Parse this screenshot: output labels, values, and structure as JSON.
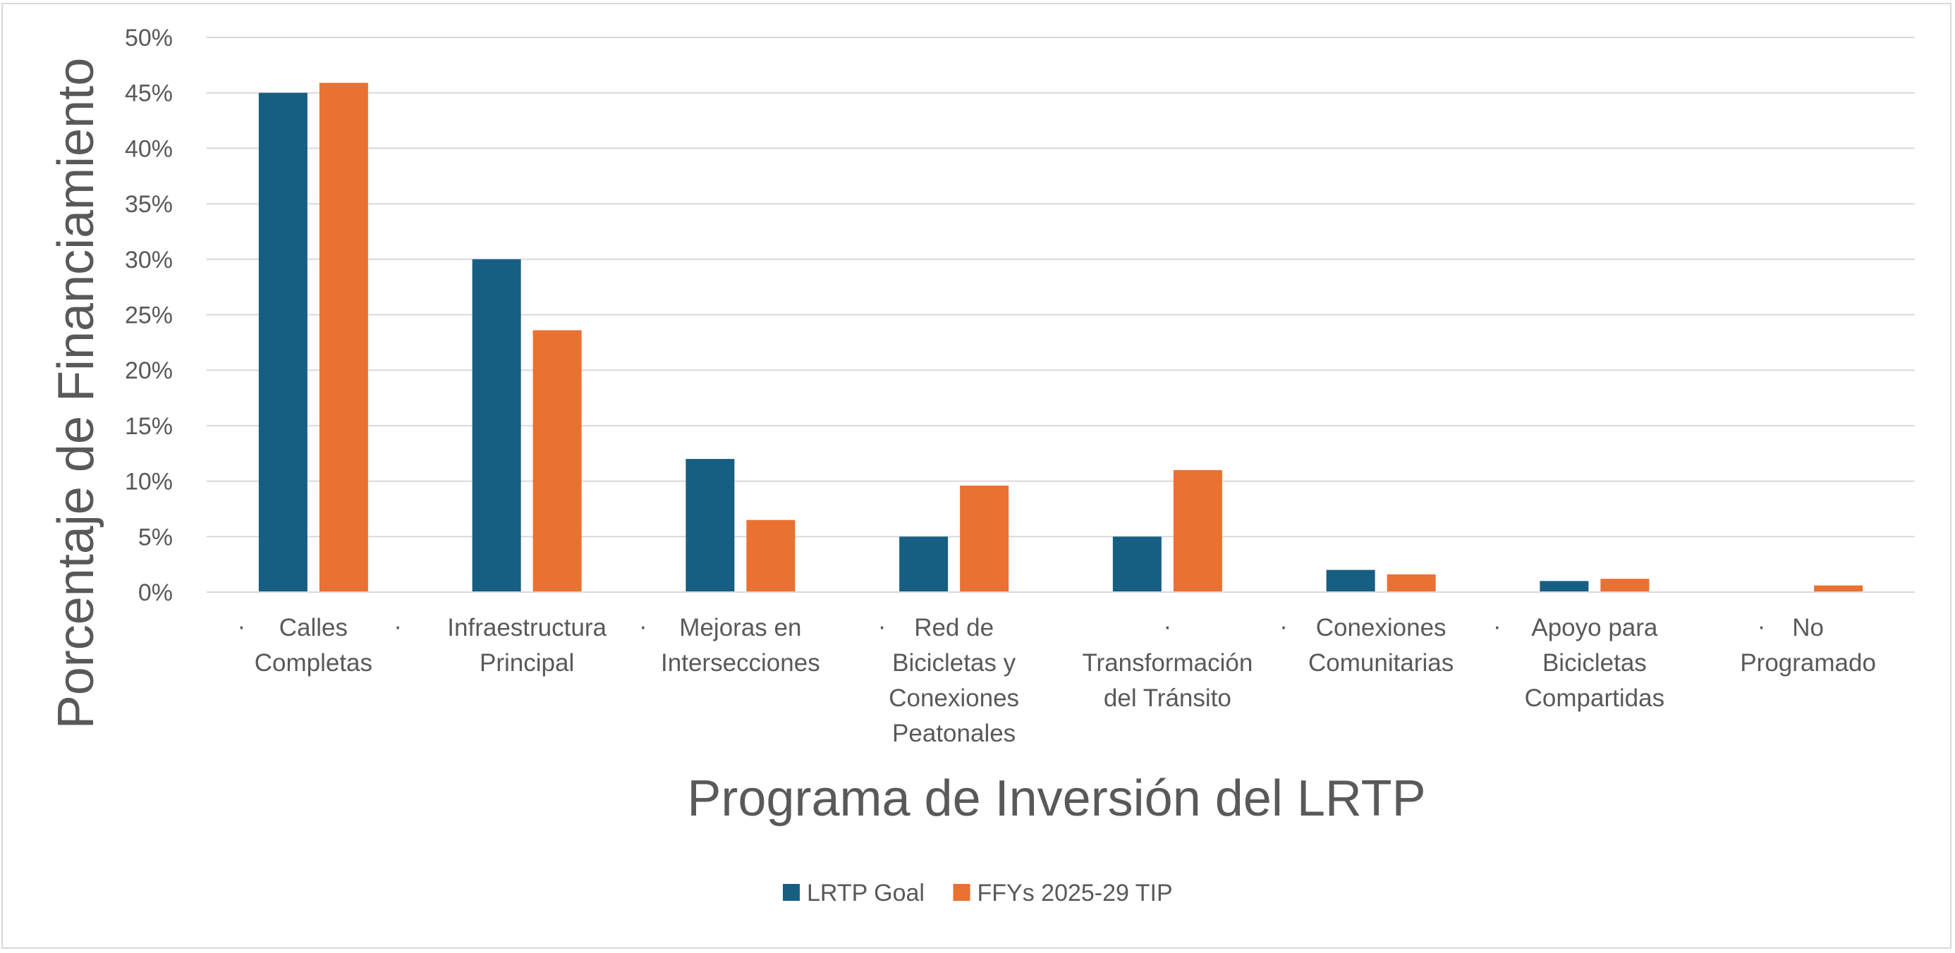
{
  "chart_data": {
    "type": "bar",
    "title": "",
    "xlabel": "Programa de Inversión del LRTP",
    "ylabel": "Porcentaje de Financiamiento",
    "ylim": [
      0,
      50
    ],
    "y_ticks": [
      "0%",
      "5%",
      "10%",
      "15%",
      "20%",
      "25%",
      "30%",
      "35%",
      "40%",
      "45%",
      "50%"
    ],
    "grid": true,
    "legend_position": "bottom",
    "bullet": "·",
    "categories": [
      [
        "Calles",
        "Completas"
      ],
      [
        "Infraestructura",
        "Principal"
      ],
      [
        "Mejoras en",
        "Intersecciones"
      ],
      [
        "Red de",
        "Bicicletas y",
        "Conexiones",
        "Peatonales"
      ],
      [
        "",
        "Transformación",
        "del Tránsito"
      ],
      [
        "Conexiones",
        "Comunitarias"
      ],
      [
        "Apoyo para",
        "Bicicletas",
        "Compartidas"
      ],
      [
        "No",
        "Programado"
      ]
    ],
    "series": [
      {
        "name": "LRTP Goal",
        "color": "#175e83",
        "values": [
          45,
          30,
          12,
          5,
          5,
          2,
          1,
          0
        ]
      },
      {
        "name": "FFYs 2025-29 TIP",
        "color": "#e97132",
        "values": [
          45.9,
          23.6,
          6.5,
          9.6,
          11.0,
          1.6,
          1.2,
          0.6
        ]
      }
    ]
  }
}
